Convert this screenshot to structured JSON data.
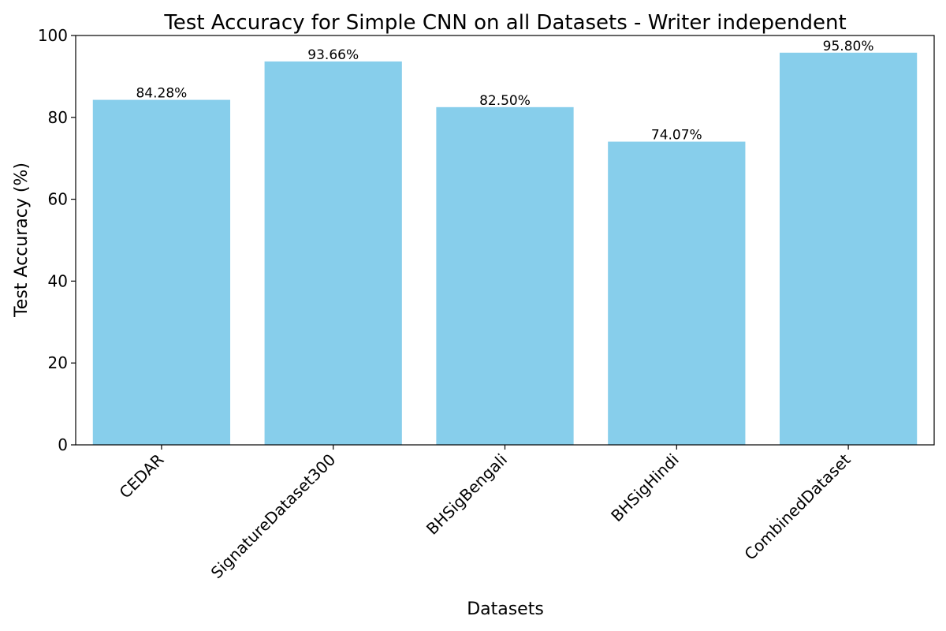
{
  "chart_data": {
    "type": "bar",
    "title": "Test Accuracy for Simple CNN on all Datasets - Writer independent",
    "xlabel": "Datasets",
    "ylabel": "Test Accuracy (%)",
    "categories": [
      "CEDAR",
      "SignatureDataset300",
      "BHSigBengali",
      "BHSigHindi",
      "CombinedDataset"
    ],
    "values": [
      84.28,
      93.66,
      82.5,
      74.07,
      95.8
    ],
    "data_labels": [
      "84.28%",
      "93.66%",
      "82.50%",
      "74.07%",
      "95.80%"
    ],
    "ylim": [
      0,
      100
    ],
    "yticks": [
      0,
      20,
      40,
      60,
      80,
      100
    ],
    "ytick_labels": [
      "0",
      "20",
      "40",
      "60",
      "80",
      "100"
    ],
    "grid": false,
    "bar_color": "#87ceeb"
  }
}
